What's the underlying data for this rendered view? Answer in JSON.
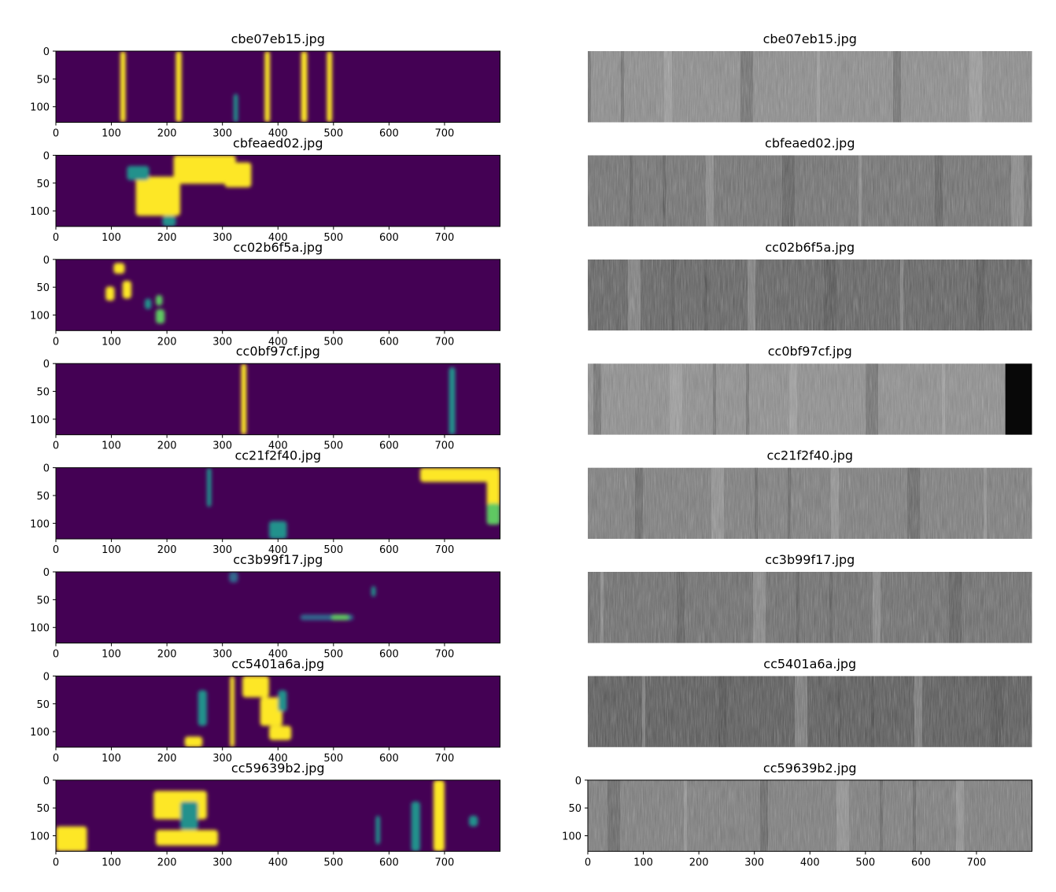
{
  "chart_data": [
    {
      "type": "image",
      "title": "cbe07eb15.jpg",
      "xlim": [
        0,
        800
      ],
      "ylim": [
        128,
        0
      ],
      "xticks": [
        0,
        100,
        200,
        300,
        400,
        500,
        600,
        700
      ],
      "yticks": [
        0,
        50,
        100
      ]
    },
    {
      "type": "image",
      "title": "cbe07eb15.jpg"
    },
    {
      "type": "image",
      "title": "cbfeaed02.jpg",
      "xlim": [
        0,
        800
      ],
      "ylim": [
        128,
        0
      ],
      "xticks": [
        0,
        100,
        200,
        300,
        400,
        500,
        600,
        700
      ],
      "yticks": [
        0,
        50,
        100
      ]
    },
    {
      "type": "image",
      "title": "cbfeaed02.jpg"
    },
    {
      "type": "image",
      "title": "cc02b6f5a.jpg",
      "xlim": [
        0,
        800
      ],
      "ylim": [
        128,
        0
      ],
      "xticks": [
        0,
        100,
        200,
        300,
        400,
        500,
        600,
        700
      ],
      "yticks": [
        0,
        50,
        100
      ]
    },
    {
      "type": "image",
      "title": "cc02b6f5a.jpg"
    },
    {
      "type": "image",
      "title": "cc0bf97cf.jpg",
      "xlim": [
        0,
        800
      ],
      "ylim": [
        128,
        0
      ],
      "xticks": [
        0,
        100,
        200,
        300,
        400,
        500,
        600,
        700
      ],
      "yticks": [
        0,
        50,
        100
      ]
    },
    {
      "type": "image",
      "title": "cc0bf97cf.jpg"
    },
    {
      "type": "image",
      "title": "cc21f2f40.jpg",
      "xlim": [
        0,
        800
      ],
      "ylim": [
        128,
        0
      ],
      "xticks": [
        0,
        100,
        200,
        300,
        400,
        500,
        600,
        700
      ],
      "yticks": [
        0,
        50,
        100
      ]
    },
    {
      "type": "image",
      "title": "cc21f2f40.jpg"
    },
    {
      "type": "image",
      "title": "cc3b99f17.jpg",
      "xlim": [
        0,
        800
      ],
      "ylim": [
        128,
        0
      ],
      "xticks": [
        0,
        100,
        200,
        300,
        400,
        500,
        600,
        700
      ],
      "yticks": [
        0,
        50,
        100
      ]
    },
    {
      "type": "image",
      "title": "cc3b99f17.jpg"
    },
    {
      "type": "image",
      "title": "cc5401a6a.jpg",
      "xlim": [
        0,
        800
      ],
      "ylim": [
        128,
        0
      ],
      "xticks": [
        0,
        100,
        200,
        300,
        400,
        500,
        600,
        700
      ],
      "yticks": [
        0,
        50,
        100
      ]
    },
    {
      "type": "image",
      "title": "cc5401a6a.jpg"
    },
    {
      "type": "image",
      "title": "cc59639b2.jpg",
      "xlim": [
        0,
        800
      ],
      "ylim": [
        128,
        0
      ],
      "xticks": [
        0,
        100,
        200,
        300,
        400,
        500,
        600,
        700
      ],
      "yticks": [
        0,
        50,
        100
      ]
    },
    {
      "type": "image",
      "title": "cc59639b2.jpg",
      "xlim": [
        0,
        800
      ],
      "ylim": [
        128,
        0
      ],
      "xticks": [
        0,
        100,
        200,
        300,
        400,
        500,
        600,
        700
      ],
      "yticks": [
        0,
        50,
        100
      ]
    }
  ]
}
